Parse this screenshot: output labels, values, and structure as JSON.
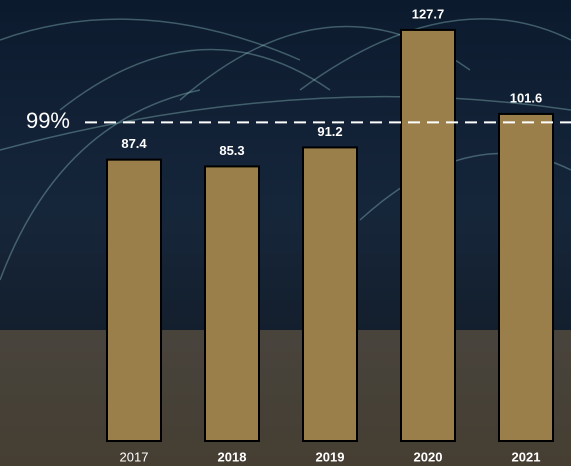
{
  "chart_data": {
    "type": "bar",
    "categories": [
      "2017",
      "2018",
      "2019",
      "2020",
      "2021"
    ],
    "values": [
      87.4,
      85.3,
      91.2,
      127.7,
      101.6
    ],
    "color": "#9a7f4a",
    "ylim": [
      0,
      137
    ],
    "reference_line": {
      "value": 99,
      "label": "99%"
    }
  }
}
